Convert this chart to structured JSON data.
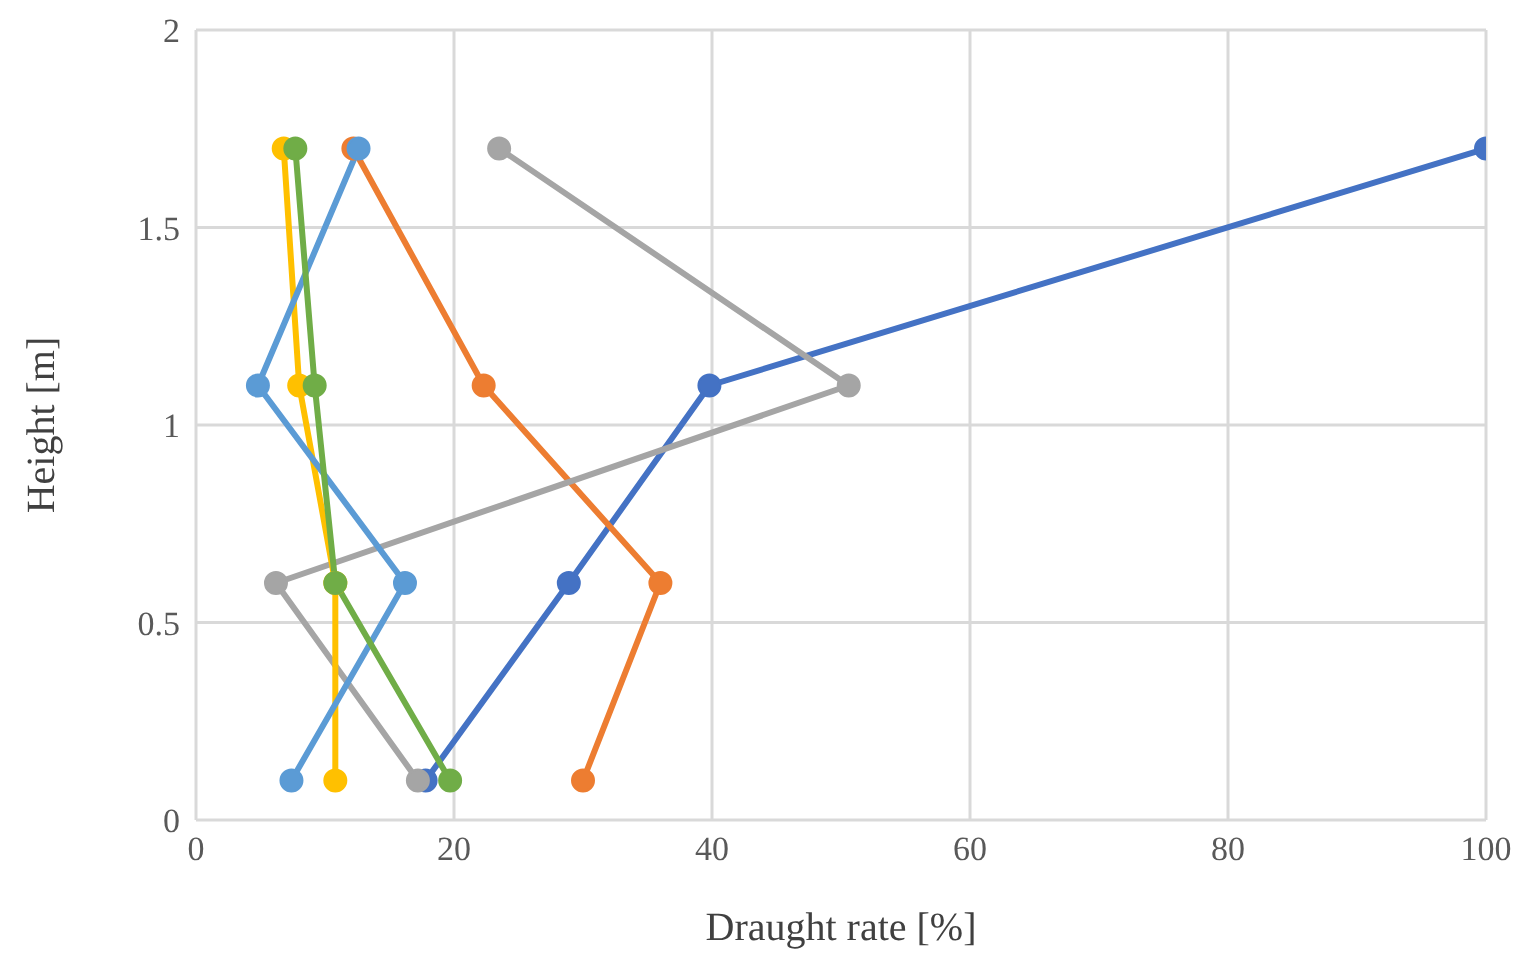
{
  "chart_data": {
    "type": "line",
    "xlabel": "Draught rate [%]",
    "ylabel": "Height [m]",
    "xlim": [
      0,
      100
    ],
    "xticks": [
      0,
      20,
      40,
      60,
      80,
      100
    ],
    "ylim": [
      0,
      2
    ],
    "yticks": [
      0,
      0.5,
      1,
      1.5,
      2
    ],
    "grid": true,
    "marker": "circle",
    "line_style": "solid",
    "legend": false,
    "series": [
      {
        "color": "#4472c4",
        "x": [
          17.8,
          28.9,
          39.8,
          100
        ],
        "values": [
          0.1,
          0.6,
          1.1,
          1.7
        ]
      },
      {
        "color": "#ed7d31",
        "x": [
          30,
          36,
          22.3,
          12.2
        ],
        "values": [
          0.1,
          0.6,
          1.1,
          1.7
        ]
      },
      {
        "color": "#a5a5a5",
        "x": [
          17.2,
          6.2,
          50.6,
          23.5
        ],
        "values": [
          0.1,
          0.6,
          1.1,
          1.7
        ]
      },
      {
        "color": "#ffc000",
        "x": [
          10.8,
          10.8,
          8,
          6.8
        ],
        "values": [
          0.1,
          0.6,
          1.1,
          1.7
        ]
      },
      {
        "color": "#5b9bd5",
        "x": [
          7.4,
          16.2,
          4.8,
          12.6
        ],
        "values": [
          0.1,
          0.6,
          1.1,
          1.7
        ]
      },
      {
        "color": "#70ad47",
        "x": [
          19.7,
          10.8,
          9.2,
          7.7
        ],
        "values": [
          0.1,
          0.6,
          1.1,
          1.7
        ]
      }
    ]
  }
}
